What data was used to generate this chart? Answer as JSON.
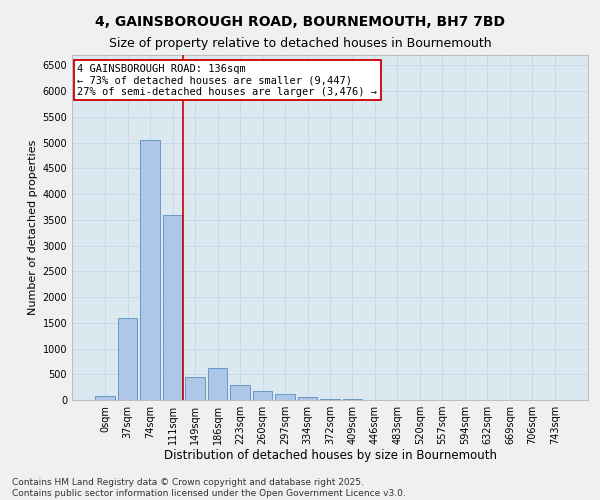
{
  "title_line1": "4, GAINSBOROUGH ROAD, BOURNEMOUTH, BH7 7BD",
  "title_line2": "Size of property relative to detached houses in Bournemouth",
  "xlabel": "Distribution of detached houses by size in Bournemouth",
  "ylabel": "Number of detached properties",
  "categories": [
    "0sqm",
    "37sqm",
    "74sqm",
    "111sqm",
    "149sqm",
    "186sqm",
    "223sqm",
    "260sqm",
    "297sqm",
    "334sqm",
    "372sqm",
    "409sqm",
    "446sqm",
    "483sqm",
    "520sqm",
    "557sqm",
    "594sqm",
    "632sqm",
    "669sqm",
    "706sqm",
    "743sqm"
  ],
  "bar_values": [
    70,
    1600,
    5050,
    3600,
    450,
    620,
    290,
    170,
    120,
    50,
    20,
    10,
    5,
    2,
    1,
    0,
    0,
    0,
    0,
    0,
    0
  ],
  "bar_color": "#aec6e8",
  "bar_edge_color": "#5a8fc0",
  "vline_color": "#cc0000",
  "vline_x": 3.47,
  "annotation_text": "4 GAINSBOROUGH ROAD: 136sqm\n← 73% of detached houses are smaller (9,447)\n27% of semi-detached houses are larger (3,476) →",
  "annotation_box_color": "#ffffff",
  "annotation_box_edge_color": "#cc0000",
  "annotation_fontsize": 7.5,
  "ylim_max": 6700,
  "yticks": [
    0,
    500,
    1000,
    1500,
    2000,
    2500,
    3000,
    3500,
    4000,
    4500,
    5000,
    5500,
    6000,
    6500
  ],
  "grid_color": "#c8d8e8",
  "bg_color": "#dce8f0",
  "fig_bg_color": "#f0f0f0",
  "footer_line1": "Contains HM Land Registry data © Crown copyright and database right 2025.",
  "footer_line2": "Contains public sector information licensed under the Open Government Licence v3.0.",
  "title_fontsize": 10,
  "subtitle_fontsize": 9,
  "xlabel_fontsize": 8.5,
  "ylabel_fontsize": 8,
  "tick_fontsize": 7,
  "footer_fontsize": 6.5
}
